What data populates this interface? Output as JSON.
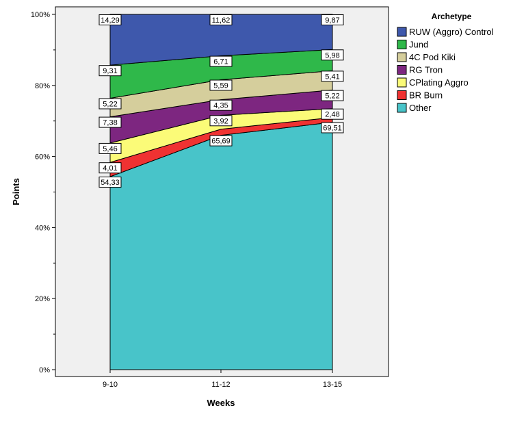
{
  "chart_data": {
    "type": "area",
    "stacked_percent": true,
    "categories": [
      "9-10",
      "11-12",
      "13-15"
    ],
    "series": [
      {
        "name": "Other",
        "values": [
          54.33,
          65.69,
          69.51
        ],
        "color": "#48C4C9"
      },
      {
        "name": "BR Burn",
        "values": [
          4.01,
          1.7,
          1.33
        ],
        "color": "#EF3232"
      },
      {
        "name": "CPlating Aggro",
        "values": [
          5.46,
          3.92,
          2.48
        ],
        "color": "#FBFB78"
      },
      {
        "name": "RG Tron",
        "values": [
          7.38,
          4.35,
          5.22
        ],
        "color": "#7D2680"
      },
      {
        "name": "4C Pod Kiki",
        "values": [
          5.22,
          5.59,
          5.41
        ],
        "color": "#D5CE9C"
      },
      {
        "name": "Jund",
        "values": [
          9.31,
          6.71,
          5.98
        ],
        "color": "#2FB84A"
      },
      {
        "name": "RUW (Aggro) Control",
        "values": [
          14.29,
          11.62,
          9.87
        ],
        "color": "#3E58AC"
      }
    ],
    "data_labels": [
      [
        "54,33",
        "65,69",
        "69,51"
      ],
      [
        "4,01",
        "",
        ""
      ],
      [
        "5,46",
        "3,92",
        "2,48"
      ],
      [
        "7,38",
        "4,35",
        "5,22"
      ],
      [
        "5,22",
        "5,59",
        "5,41"
      ],
      [
        "9,31",
        "6,71",
        "5,98"
      ],
      [
        "14,29",
        "11,62",
        "9,87"
      ]
    ],
    "legend_title": "Archetype",
    "legend_order": [
      "RUW (Aggro) Control",
      "Jund",
      "4C Pod Kiki",
      "RG Tron",
      "CPlating Aggro",
      "BR Burn",
      "Other"
    ],
    "legend_position": "right",
    "xlabel": "Weeks",
    "ylabel": "Points",
    "ylim": [
      0,
      100
    ],
    "yticks": [
      "0%",
      "20%",
      "40%",
      "60%",
      "80%",
      "100%"
    ],
    "grid": false,
    "plot_background": "#F0F0F0"
  }
}
